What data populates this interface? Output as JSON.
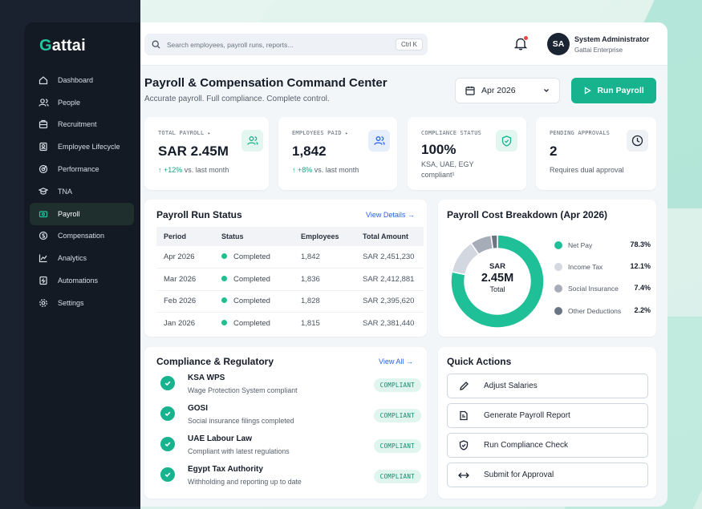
{
  "brand": {
    "prefix": "G",
    "rest": "attai"
  },
  "sidebar": {
    "items": [
      {
        "label": "Dashboard",
        "icon": "home-icon"
      },
      {
        "label": "People",
        "icon": "users-icon"
      },
      {
        "label": "Recruitment",
        "icon": "recruitment-icon"
      },
      {
        "label": "Employee Lifecycle",
        "icon": "lifecycle-icon"
      },
      {
        "label": "Performance",
        "icon": "performance-icon"
      },
      {
        "label": "TNA",
        "icon": "tna-icon"
      },
      {
        "label": "Payroll",
        "icon": "payroll-icon",
        "active": true
      },
      {
        "label": "Compensation",
        "icon": "compensation-icon"
      },
      {
        "label": "Analytics",
        "icon": "analytics-icon"
      },
      {
        "label": "Automations",
        "icon": "automations-icon"
      },
      {
        "label": "Settings",
        "icon": "settings-icon"
      }
    ]
  },
  "topbar": {
    "search_placeholder": "Search employees, payroll runs, reports...",
    "shortcut": "Ctrl K",
    "user_initials": "SA",
    "user_name": "System Administrator",
    "user_org": "Gattai Enterprise"
  },
  "header": {
    "title": "Payroll & Compensation Command Center",
    "subtitle": "Accurate payroll. Full compliance. Complete control.",
    "period": "Apr 2026",
    "run_label": "Run Payroll"
  },
  "kpis": {
    "total_payroll": {
      "label": "TOTAL PAYROLL",
      "value": "SAR 2.45M",
      "delta": "+12%",
      "delta_suffix": " vs. last month"
    },
    "employees_paid": {
      "label": "EMPLOYEES PAID",
      "value": "1,842",
      "delta": "+8%",
      "delta_suffix": " vs. last month"
    },
    "compliance": {
      "label": "COMPLIANCE STATUS",
      "value": "100%",
      "note": "KSA, UAE, EGY compliant¹"
    },
    "pending": {
      "label": "PENDING APPROVALS",
      "value": "2",
      "note": "Requires dual approval"
    }
  },
  "run_status": {
    "title": "Payroll Run Status",
    "link": "View Details",
    "columns": [
      "Period",
      "Status",
      "Employees",
      "Total Amount"
    ],
    "rows": [
      {
        "period": "Apr 2026",
        "status": "Completed",
        "employees": "1,842",
        "amount": "SAR 2,451,230"
      },
      {
        "period": "Mar 2026",
        "status": "Completed",
        "employees": "1,836",
        "amount": "SAR 2,412,881"
      },
      {
        "period": "Feb 2026",
        "status": "Completed",
        "employees": "1,828",
        "amount": "SAR 2,395,620"
      },
      {
        "period": "Jan 2026",
        "status": "Completed",
        "employees": "1,815",
        "amount": "SAR 2,381,440"
      }
    ]
  },
  "breakdown": {
    "title": "Payroll Cost Breakdown (Apr 2026)",
    "center_line1": "SAR",
    "center_line2": "2.45M",
    "center_line3": "Total"
  },
  "chart_data": {
    "type": "pie",
    "title": "Payroll Cost Breakdown (Apr 2026)",
    "categories": [
      "Net Pay",
      "Income Tax",
      "Social Insurance",
      "Other Deductions"
    ],
    "values": [
      78.3,
      12.1,
      7.4,
      2.2
    ],
    "labels": [
      "78.3%",
      "12.1%",
      "7.4%",
      "2.2%"
    ],
    "colors": [
      "#1fbf97",
      "#d3d8e0",
      "#a6adb8",
      "#6b7483"
    ],
    "legend_position": "right"
  },
  "compliance": {
    "title": "Compliance & Regulatory",
    "link": "View All",
    "items": [
      {
        "name": "KSA WPS",
        "desc": "Wage Protection System compliant",
        "badge": "COMPLIANT"
      },
      {
        "name": "GOSI",
        "desc": "Social insurance filings completed",
        "badge": "COMPLIANT"
      },
      {
        "name": "UAE Labour Law",
        "desc": "Compliant with latest regulations",
        "badge": "COMPLIANT"
      },
      {
        "name": "Egypt Tax Authority",
        "desc": "Withholding and reporting up to date",
        "badge": "COMPLIANT"
      }
    ]
  },
  "quick_actions": {
    "title": "Quick Actions",
    "items": [
      {
        "label": "Adjust Salaries",
        "icon": "pencil-icon"
      },
      {
        "label": "Generate Payroll Report",
        "icon": "document-icon"
      },
      {
        "label": "Run Compliance Check",
        "icon": "shield-icon"
      },
      {
        "label": "Submit for Approval",
        "icon": "arrows-icon"
      }
    ]
  }
}
